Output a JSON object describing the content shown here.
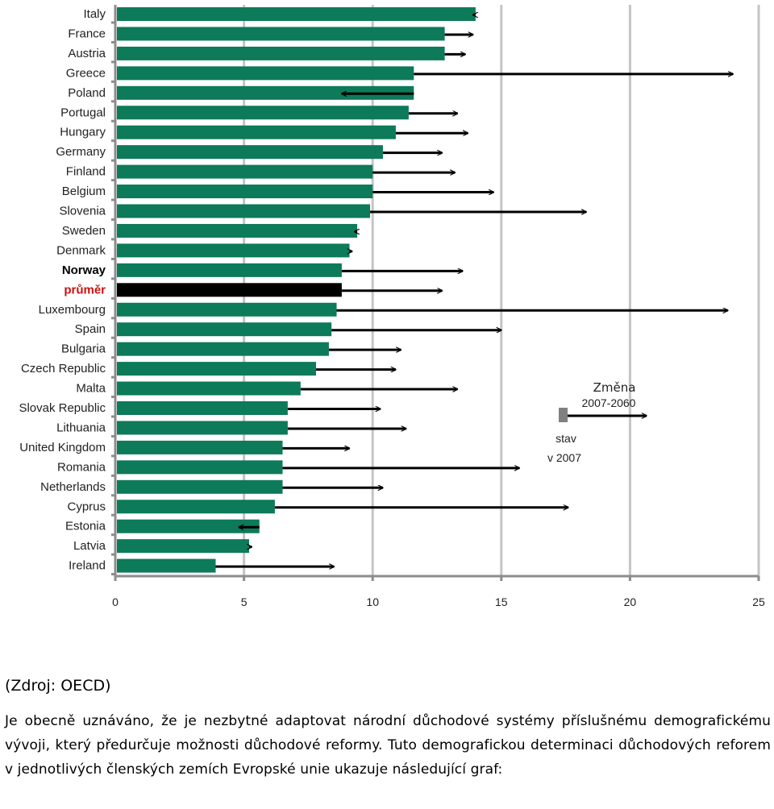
{
  "chart_data": {
    "type": "bar",
    "orientation": "horizontal",
    "categories": [
      "Italy",
      "France",
      "Austria",
      "Greece",
      "Poland",
      "Portugal",
      "Hungary",
      "Germany",
      "Finland",
      "Belgium",
      "Slovenia",
      "Sweden",
      "Denmark",
      "Norway",
      "průměr",
      "Luxembourg",
      "Spain",
      "Bulgaria",
      "Czech Republic",
      "Malta",
      "Slovak Republic",
      "Lithuania",
      "United Kingdom",
      "Romania",
      "Netherlands",
      "Cyprus",
      "Estonia",
      "Latvia",
      "Ireland"
    ],
    "bold_categories": [
      "Norway"
    ],
    "highlight_category": "průměr",
    "series": [
      {
        "name": "stav v 2007",
        "values": [
          14.0,
          12.8,
          12.8,
          11.6,
          11.6,
          11.4,
          10.9,
          10.4,
          10.0,
          10.0,
          9.9,
          9.4,
          9.1,
          8.8,
          8.8,
          8.6,
          8.4,
          8.3,
          7.8,
          7.2,
          6.7,
          6.7,
          6.5,
          6.5,
          6.5,
          6.2,
          5.6,
          5.2,
          3.9
        ]
      },
      {
        "name": "Změna 2007-2060",
        "values": [
          13.9,
          13.9,
          13.6,
          24.0,
          8.8,
          13.3,
          13.7,
          12.7,
          13.2,
          14.7,
          18.3,
          9.3,
          9.2,
          13.5,
          12.7,
          23.8,
          15.0,
          11.1,
          10.9,
          13.3,
          10.3,
          11.3,
          9.1,
          15.7,
          10.4,
          17.6,
          4.8,
          5.3,
          8.5
        ]
      }
    ],
    "legend": {
      "label_bar": "stav\nv 2007",
      "bar_line1": "stav",
      "bar_line2": "v 2007",
      "arrow_line1": "Změna",
      "arrow_line2": "2007-2060",
      "placement": "right-middle"
    },
    "xlim": [
      0,
      25
    ],
    "x_ticks": [
      "0",
      "5",
      "10",
      "15",
      "20",
      "25"
    ],
    "grid": true,
    "colors": {
      "bar": "#0d7a5a",
      "highlight_bar": "#000000",
      "arrow": "#000000",
      "grid": "#c4c4c4",
      "axis": "#8c8c8c",
      "avg_label": "#cc1111",
      "legend_bar": "#808080"
    }
  },
  "source": "(Zdroj: OECD)",
  "paragraph": "Je obecně uznáváno, že je nezbytné adaptovat národní důchodové systémy příslušnému demografickému vývoji, který předurčuje možnosti důchodové reformy. Tuto demografickou determinaci důchodových reforem v jednotlivých členských zemích Evropské unie ukazuje následující graf:"
}
